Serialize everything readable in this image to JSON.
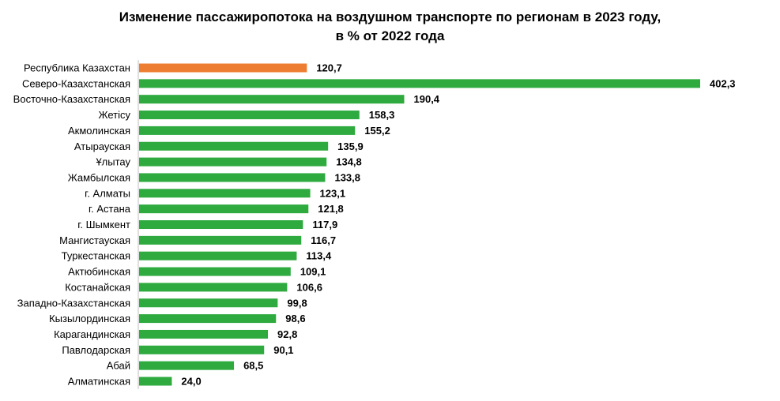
{
  "chart_data": {
    "type": "bar",
    "orientation": "horizontal",
    "title_lines": [
      "Изменение пассажиропотока на воздушном транспорте по регионам в 2023 году,",
      "в % от 2022 года"
    ],
    "xlabel": "",
    "ylabel": "",
    "xlim": [
      0,
      402.3
    ],
    "grid": false,
    "legend": "none",
    "categories": [
      "Республика Казахстан",
      "Северо-Казахстанская",
      "Восточно-Казахстанская",
      "Жетісу",
      "Акмолинская",
      "Атырауская",
      "Ұлытау",
      "Жамбылская",
      "г. Алматы",
      "г. Астана",
      "г. Шымкент",
      "Мангистауская",
      "Туркестанская",
      "Актюбинская",
      "Костанайская",
      "Западно-Казахстанская",
      "Кызылординская",
      "Карагандинская",
      "Павлодарская",
      "Абай",
      "Алматинская"
    ],
    "values": [
      120.7,
      402.3,
      190.4,
      158.3,
      155.2,
      135.9,
      134.8,
      133.8,
      123.1,
      121.8,
      117.9,
      116.7,
      113.4,
      109.1,
      106.6,
      99.8,
      98.6,
      92.8,
      90.1,
      68.5,
      24.0
    ],
    "value_labels": [
      "120,7",
      "402,3",
      "190,4",
      "158,3",
      "155,2",
      "135,9",
      "134,8",
      "133,8",
      "123,1",
      "121,8",
      "117,9",
      "116,7",
      "113,4",
      "109,1",
      "106,6",
      "99,8",
      "98,6",
      "92,8",
      "90,1",
      "68,5",
      "24,0"
    ],
    "colors": {
      "highlight": "#ED7D31",
      "default": "#2EAA3F",
      "axis": "#BFBFBF"
    },
    "highlight_index": 0
  }
}
